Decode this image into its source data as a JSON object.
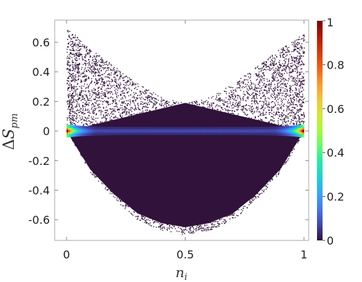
{
  "chart_data": {
    "type": "scatter",
    "title": "",
    "xlabel_base": "n",
    "xlabel_sub": "i",
    "ylabel_prefix": "Δ",
    "ylabel_base": "S",
    "ylabel_sub": "pm",
    "xlim": [
      -0.05,
      1.02
    ],
    "ylim": [
      -0.74,
      0.75
    ],
    "x_ticks": [
      0,
      0.5,
      1
    ],
    "x_tick_labels": [
      "0",
      "0.5",
      "1"
    ],
    "y_ticks": [
      0.6,
      0.4,
      0.2,
      0,
      -0.2,
      -0.4,
      -0.6
    ],
    "y_tick_labels": [
      "0.6",
      "0.4",
      "0.2",
      "0",
      "-0.2",
      "-0.4",
      "-0.6"
    ],
    "grid": false,
    "colorbar": {
      "min": 0,
      "max": 1,
      "ticks": [
        1,
        0.8,
        0.6,
        0.4,
        0.2,
        0
      ],
      "tick_labels": [
        "1",
        "0.8",
        "0.6",
        "0.4",
        "0.2",
        "0"
      ],
      "colormap": "turbo"
    },
    "density_envelope": {
      "lower_bound_at_x": [
        [
          0,
          0
        ],
        [
          0.1,
          -0.28
        ],
        [
          0.2,
          -0.46
        ],
        [
          0.3,
          -0.6
        ],
        [
          0.4,
          -0.67
        ],
        [
          0.5,
          -0.7
        ],
        [
          0.6,
          -0.67
        ],
        [
          0.7,
          -0.6
        ],
        [
          0.8,
          -0.46
        ],
        [
          0.9,
          -0.28
        ],
        [
          1,
          0
        ]
      ],
      "upper_bound_at_x": [
        [
          0,
          0.7
        ],
        [
          0.1,
          0.56
        ],
        [
          0.2,
          0.44
        ],
        [
          0.3,
          0.32
        ],
        [
          0.4,
          0.23
        ],
        [
          0.5,
          0.19
        ],
        [
          0.6,
          0.23
        ],
        [
          0.7,
          0.32
        ],
        [
          0.8,
          0.44
        ],
        [
          0.9,
          0.56
        ],
        [
          1,
          0.66
        ]
      ],
      "dense_band": [
        -0.03,
        0.03
      ],
      "peak_density_x": [
        0,
        1
      ]
    },
    "background_color": "#30123b"
  }
}
